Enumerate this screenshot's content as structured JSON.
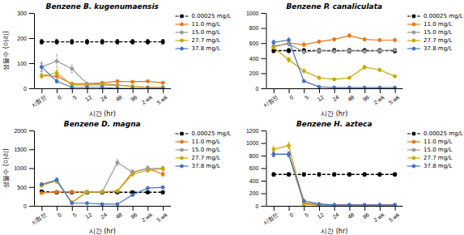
{
  "chart_data": [
    {
      "type": "line",
      "title": "Benzene B. kugenumaensis",
      "x_label": "시간 (hr)",
      "y_label": "생물수 (마리)",
      "categories": [
        "시험전",
        "0",
        "5",
        "12",
        "24",
        "48",
        "96",
        "2 wk",
        "5 wk"
      ],
      "ylim": [
        0,
        300
      ],
      "yticks": [
        0,
        100,
        200,
        300
      ],
      "grid": false,
      "legend": "upper right",
      "series": [
        {
          "name": "0.00025 mg/L",
          "color": "black",
          "line_style": "dashed",
          "marker": "square",
          "values": [
            185,
            185,
            185,
            185,
            185,
            185,
            185,
            185,
            185
          ],
          "errors": [
            10,
            10,
            10,
            10,
            10,
            10,
            10,
            10,
            10
          ]
        },
        {
          "name": "11.0 mg/L",
          "color": "#E8761A",
          "line_style": "solid",
          "marker": "circle",
          "values": [
            50,
            48,
            18,
            18,
            22,
            28,
            26,
            28,
            22
          ],
          "errors": [
            8,
            10,
            6,
            4,
            4,
            4,
            3,
            3,
            3
          ]
        },
        {
          "name": "15.0 mg/L",
          "color": "#999999",
          "line_style": "solid",
          "marker": "circle",
          "values": [
            85,
            108,
            78,
            18,
            18,
            13,
            8,
            4,
            4
          ],
          "errors": [
            20,
            25,
            15,
            5,
            5,
            4,
            3,
            2,
            2
          ]
        },
        {
          "name": "27.7 mg/L",
          "color": "#C8A800",
          "line_style": "solid",
          "marker": "circle",
          "values": [
            50,
            62,
            13,
            13,
            13,
            12,
            8,
            4,
            4
          ],
          "errors": [
            8,
            12,
            4,
            3,
            3,
            3,
            2,
            2,
            2
          ]
        },
        {
          "name": "37.8 mg/L",
          "color": "#4472C4",
          "line_style": "solid",
          "marker": "circle",
          "values": [
            85,
            28,
            4,
            4,
            4,
            0,
            0,
            0,
            0
          ],
          "errors": [
            15,
            6,
            2,
            2,
            2,
            0,
            0,
            0,
            0
          ]
        }
      ]
    },
    {
      "type": "line",
      "title": "Benzene P. canaliculata",
      "x_label": "시간 (hr)",
      "categories": [
        "시험전",
        "0",
        "5",
        "12",
        "24",
        "48",
        "96",
        "2 wk",
        "5 wk"
      ],
      "ylim": [
        0,
        1000
      ],
      "yticks": [
        0,
        200,
        400,
        600,
        800,
        1000
      ],
      "grid": false,
      "legend": "upper right",
      "series": [
        {
          "name": "0.00025 mg/L",
          "color": "black",
          "line_style": "dashed",
          "marker": "square",
          "values": [
            500,
            500,
            500,
            500,
            500,
            500,
            500,
            500,
            500
          ],
          "errors": [
            30,
            30,
            30,
            30,
            30,
            30,
            30,
            30,
            30
          ]
        },
        {
          "name": "11.0 mg/L",
          "color": "#E8761A",
          "line_style": "solid",
          "marker": "circle",
          "values": [
            550,
            600,
            580,
            620,
            650,
            700,
            650,
            640,
            640
          ],
          "errors": [
            25,
            30,
            25,
            20,
            20,
            25,
            20,
            20,
            20
          ]
        },
        {
          "name": "15.0 mg/L",
          "color": "#999999",
          "line_style": "solid",
          "marker": "circle",
          "values": [
            560,
            590,
            480,
            500,
            490,
            500,
            490,
            500,
            510
          ],
          "errors": [
            25,
            30,
            20,
            20,
            20,
            20,
            20,
            20,
            20
          ]
        },
        {
          "name": "27.7 mg/L",
          "color": "#C8A800",
          "line_style": "solid",
          "marker": "circle",
          "values": [
            540,
            380,
            230,
            140,
            120,
            140,
            280,
            245,
            160
          ],
          "errors": [
            20,
            30,
            25,
            20,
            15,
            15,
            25,
            20,
            15
          ]
        },
        {
          "name": "37.8 mg/L",
          "color": "#4472C4",
          "line_style": "solid",
          "marker": "circle",
          "values": [
            610,
            640,
            95,
            20,
            10,
            10,
            10,
            10,
            10
          ],
          "errors": [
            30,
            30,
            15,
            5,
            3,
            3,
            3,
            3,
            3
          ]
        }
      ]
    },
    {
      "type": "line",
      "title": "Benzene D. magna",
      "x_label": "시간 (hr)",
      "y_label": "생물수 (마리)",
      "categories": [
        "시험전",
        "0",
        "5",
        "12",
        "24",
        "48",
        "96",
        "2 wk",
        "5 wk"
      ],
      "ylim": [
        0,
        2000
      ],
      "yticks": [
        0,
        500,
        1000,
        1500,
        2000
      ],
      "grid": false,
      "legend": "upper right",
      "series": [
        {
          "name": "0.00025 mg/L",
          "color": "black",
          "line_style": "dashed",
          "marker": "square",
          "values": [
            380,
            360,
            360,
            360,
            360,
            360,
            360,
            360,
            360
          ],
          "errors": [
            30,
            30,
            30,
            30,
            30,
            30,
            30,
            30,
            30
          ]
        },
        {
          "name": "11.0 mg/L",
          "color": "#E8761A",
          "line_style": "solid",
          "marker": "circle",
          "values": [
            340,
            370,
            370,
            370,
            370,
            390,
            890,
            990,
            840
          ],
          "errors": [
            20,
            20,
            20,
            20,
            20,
            30,
            60,
            60,
            50
          ]
        },
        {
          "name": "15.0 mg/L",
          "color": "#999999",
          "line_style": "solid",
          "marker": "circle",
          "values": [
            570,
            650,
            90,
            370,
            370,
            1150,
            890,
            990,
            990
          ],
          "errors": [
            40,
            50,
            15,
            20,
            20,
            80,
            60,
            60,
            60
          ]
        },
        {
          "name": "27.7 mg/L",
          "color": "#C8A800",
          "line_style": "solid",
          "marker": "circle",
          "values": [
            540,
            670,
            90,
            370,
            370,
            390,
            840,
            940,
            990
          ],
          "errors": [
            40,
            50,
            15,
            20,
            20,
            30,
            50,
            50,
            50
          ]
        },
        {
          "name": "37.8 mg/L",
          "color": "#4472C4",
          "line_style": "solid",
          "marker": "circle",
          "values": [
            570,
            690,
            70,
            70,
            45,
            45,
            290,
            470,
            490
          ],
          "errors": [
            40,
            50,
            10,
            10,
            8,
            8,
            25,
            35,
            35
          ]
        }
      ]
    },
    {
      "type": "line",
      "title": "Benzene H. azteca",
      "x_label": "시간 (hr)",
      "categories": [
        "시험전",
        "0",
        "5",
        "12",
        "24",
        "48",
        "96",
        "2 wk",
        "5 wk"
      ],
      "ylim": [
        0,
        1200
      ],
      "yticks": [
        0,
        200,
        400,
        600,
        800,
        1000,
        1200
      ],
      "grid": false,
      "legend": "upper right",
      "series": [
        {
          "name": "0.00025 mg/L",
          "color": "black",
          "line_style": "dashed",
          "marker": "square",
          "values": [
            500,
            500,
            500,
            500,
            500,
            500,
            500,
            500,
            500
          ],
          "errors": [
            30,
            30,
            30,
            30,
            30,
            30,
            30,
            30,
            30
          ]
        },
        {
          "name": "11.0 mg/L",
          "color": "#E8761A",
          "line_style": "solid",
          "marker": "circle",
          "values": [
            820,
            820,
            50,
            20,
            15,
            15,
            15,
            15,
            15
          ],
          "errors": [
            40,
            40,
            10,
            5,
            3,
            3,
            3,
            3,
            3
          ]
        },
        {
          "name": "15.0 mg/L",
          "color": "#999999",
          "line_style": "solid",
          "marker": "circle",
          "values": [
            820,
            820,
            30,
            10,
            5,
            5,
            5,
            5,
            5
          ],
          "errors": [
            40,
            40,
            8,
            3,
            2,
            2,
            2,
            2,
            2
          ]
        },
        {
          "name": "27.7 mg/L",
          "color": "#C8A800",
          "line_style": "solid",
          "marker": "circle",
          "values": [
            900,
            960,
            30,
            10,
            5,
            5,
            5,
            5,
            5
          ],
          "errors": [
            50,
            50,
            8,
            3,
            2,
            2,
            2,
            2,
            2
          ]
        },
        {
          "name": "37.8 mg/L",
          "color": "#4472C4",
          "line_style": "solid",
          "marker": "circle",
          "values": [
            820,
            820,
            80,
            30,
            15,
            15,
            15,
            15,
            15
          ],
          "errors": [
            40,
            40,
            10,
            5,
            3,
            3,
            3,
            3,
            3
          ]
        }
      ]
    }
  ]
}
